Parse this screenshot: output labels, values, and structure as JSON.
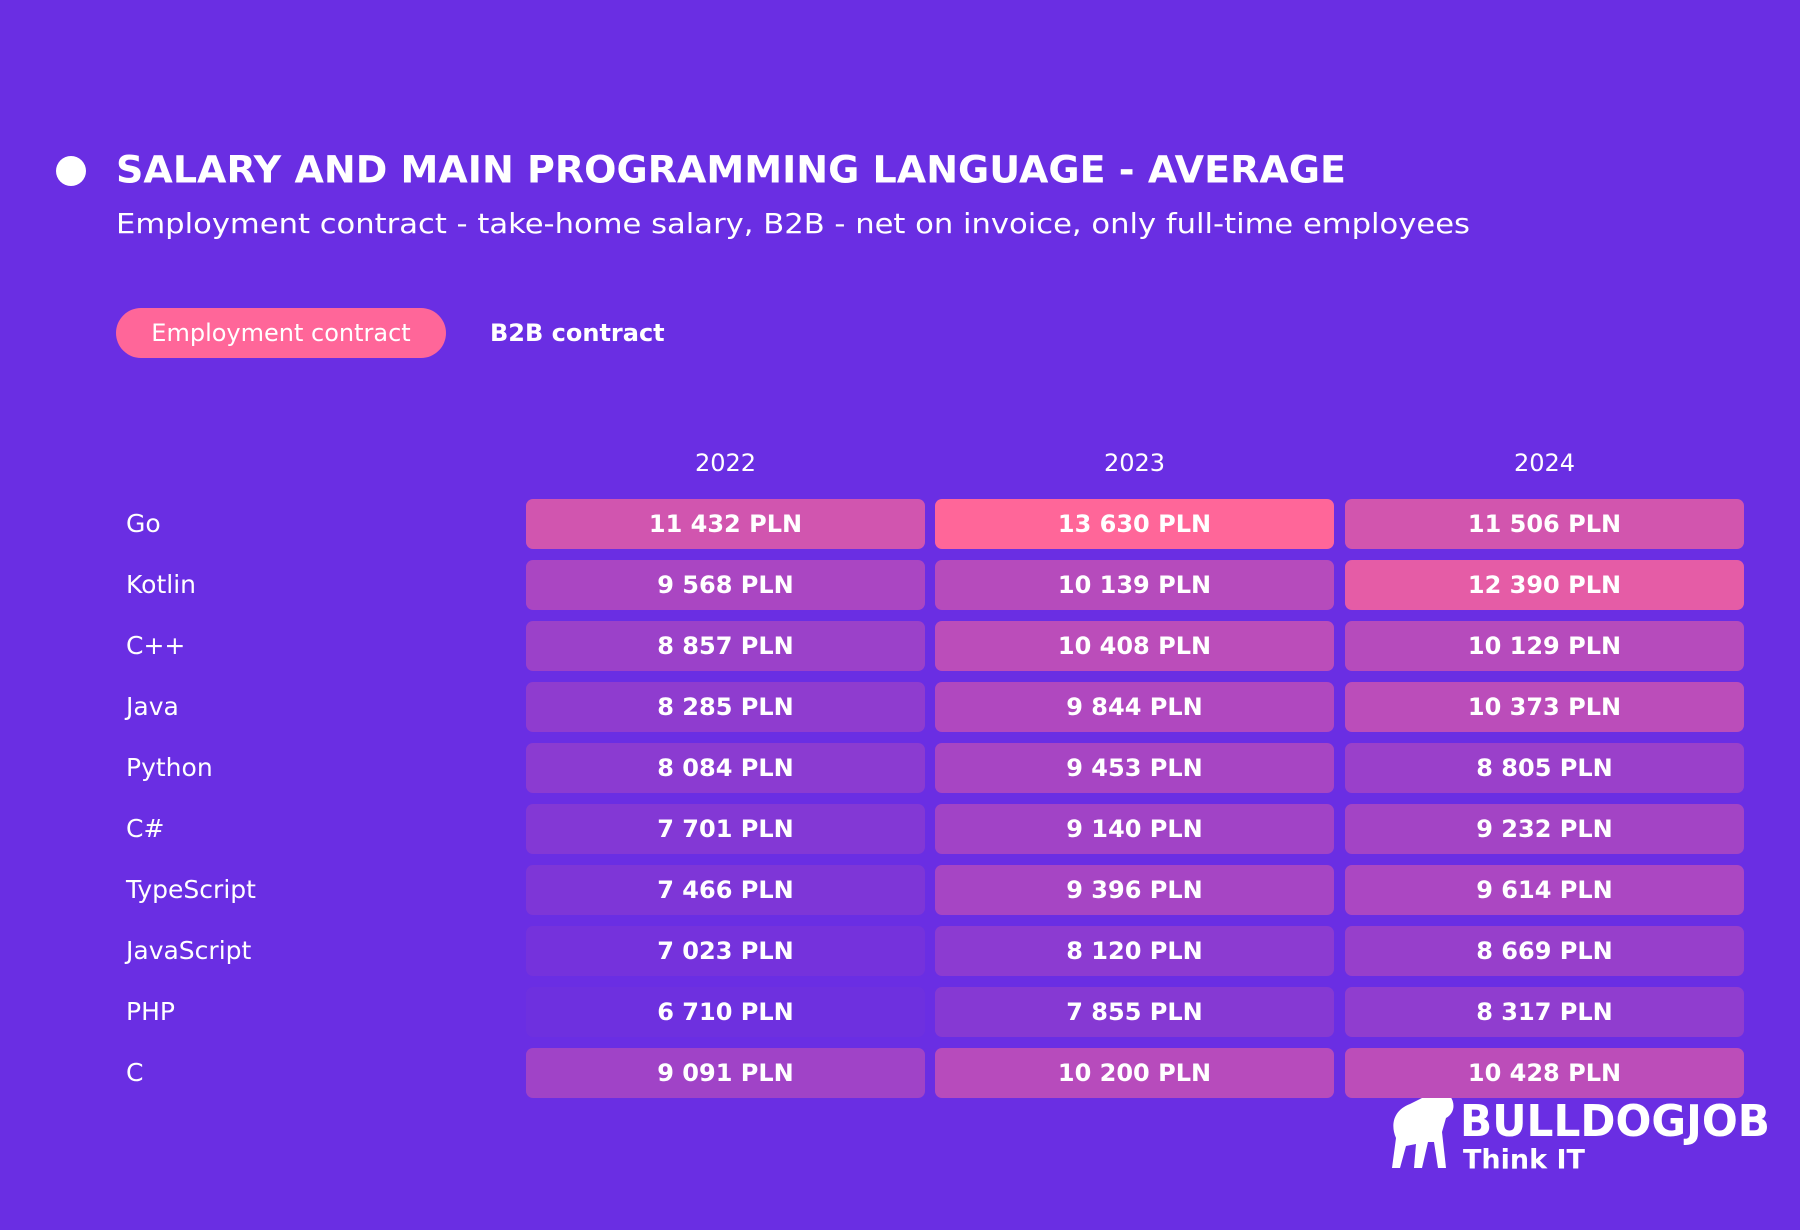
{
  "chart_data": {
    "type": "heatmap",
    "title": "SALARY AND MAIN PROGRAMMING LANGUAGE - AVERAGE",
    "subtitle": "Employment contract - take-home salary, B2B - net on invoice, only full-time employees",
    "x": [
      "2022",
      "2023",
      "2024"
    ],
    "categories": [
      "Go",
      "Kotlin",
      "C++",
      "Java",
      "Python",
      "C#",
      "TypeScript",
      "JavaScript",
      "PHP",
      "C"
    ],
    "values": [
      [
        11432,
        13630,
        11506
      ],
      [
        9568,
        10139,
        12390
      ],
      [
        8857,
        10408,
        10129
      ],
      [
        8285,
        9844,
        10373
      ],
      [
        8084,
        9453,
        8805
      ],
      [
        7701,
        9140,
        9232
      ],
      [
        7466,
        9396,
        9614
      ],
      [
        7023,
        8120,
        8669
      ],
      [
        6710,
        7855,
        8317
      ],
      [
        9091,
        10200,
        10428
      ]
    ],
    "value_labels": [
      [
        "11 432 PLN",
        "13 630 PLN",
        "11 506 PLN"
      ],
      [
        "9 568 PLN",
        "10 139 PLN",
        "12 390 PLN"
      ],
      [
        "8 857 PLN",
        "10 408 PLN",
        "10 129 PLN"
      ],
      [
        "8 285 PLN",
        "9 844 PLN",
        "10 373 PLN"
      ],
      [
        "8 084 PLN",
        "9 453 PLN",
        "8 805 PLN"
      ],
      [
        "7 701 PLN",
        "9 140 PLN",
        "9 232 PLN"
      ],
      [
        "7 466 PLN",
        "9 396 PLN",
        "9 614 PLN"
      ],
      [
        "7 023 PLN",
        "8 120 PLN",
        "8 669 PLN"
      ],
      [
        "6 710 PLN",
        "7 855 PLN",
        "8 317 PLN"
      ],
      [
        "9 091 PLN",
        "10 200 PLN",
        "10 428 PLN"
      ]
    ],
    "color_scale": [
      "#6e30df",
      "#ff6699"
    ]
  },
  "tabs": [
    "Employment contract",
    "B2B contract"
  ],
  "logo": {
    "name": "BULLDOGJOB",
    "tagline": "Think IT"
  }
}
